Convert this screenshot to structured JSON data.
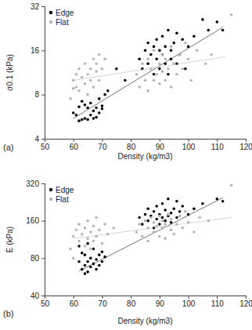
{
  "chart_data": [
    {
      "type": "scatter",
      "title": "(a)",
      "xlabel": "Density (kg/m3)",
      "ylabel": "σ0.1 (kPa)",
      "xlim": [
        50,
        120
      ],
      "xticks": [
        50,
        60,
        70,
        80,
        90,
        100,
        110,
        120
      ],
      "ylim": [
        4,
        32
      ],
      "yticks": [
        4,
        8,
        16,
        32
      ],
      "log": "y",
      "legend": "top-left",
      "series": [
        {
          "name": "Edge",
          "color": "#000000",
          "marker": "circle",
          "x": [
            60,
            61,
            62,
            62,
            63,
            63,
            64,
            64,
            65,
            65,
            66,
            66,
            67,
            67,
            68,
            68,
            69,
            69,
            70,
            70,
            71,
            72,
            75,
            78,
            83,
            84,
            85,
            86,
            86,
            87,
            88,
            88,
            89,
            89,
            90,
            90,
            91,
            91,
            92,
            92,
            93,
            93,
            94,
            94,
            95,
            96,
            96,
            97,
            98,
            99,
            100,
            102,
            105,
            107,
            110,
            112
          ],
          "values": [
            6,
            5.8,
            5.3,
            6.6,
            5.4,
            7.2,
            5.5,
            6.8,
            6.5,
            5.4,
            5.8,
            7,
            6.2,
            5.5,
            6.5,
            5.6,
            7.5,
            6,
            6.4,
            6.7,
            8,
            8.5,
            12,
            10,
            14,
            12,
            16,
            18,
            13,
            15,
            11,
            17,
            19,
            14,
            16,
            12,
            20,
            15,
            13,
            17,
            22,
            11,
            16,
            14,
            18,
            13,
            21,
            15,
            19,
            12,
            17,
            20,
            26,
            22,
            25,
            22
          ],
          "trend": {
            "x": [
              60,
              112
            ],
            "values": [
              5.5,
              23
            ]
          }
        },
        {
          "name": "Flat",
          "color": "#b5b5b5",
          "marker": "circle",
          "x": [
            59,
            60,
            61,
            61,
            62,
            62,
            63,
            64,
            64,
            65,
            65,
            66,
            66,
            67,
            67,
            68,
            68,
            69,
            69,
            70,
            71,
            60,
            82,
            83,
            84,
            85,
            86,
            86,
            87,
            88,
            88,
            89,
            90,
            90,
            91,
            91,
            92,
            92,
            93,
            94,
            94,
            95,
            96,
            97,
            98,
            99,
            100,
            101,
            103,
            106,
            108,
            115
          ],
          "values": [
            7.5,
            10,
            9,
            11,
            12,
            8.5,
            10.5,
            9.5,
            13,
            11,
            8,
            12,
            10,
            14,
            9,
            11.5,
            13,
            10,
            15,
            12,
            14,
            8.8,
            11,
            9,
            13,
            10,
            14,
            8.5,
            12,
            10,
            16,
            11,
            13,
            9.5,
            15,
            11.5,
            10,
            14,
            12,
            17,
            9,
            13,
            11,
            15,
            12,
            18,
            14,
            10,
            16,
            13,
            15,
            28
          ],
          "trend": {
            "x": [
              60,
              113
            ],
            "values": [
              10,
              14.5
            ]
          }
        }
      ]
    },
    {
      "type": "scatter",
      "title": "(b)",
      "xlabel": "Density (kg/m3)",
      "ylabel": "E (kPa)",
      "xlim": [
        50,
        120
      ],
      "xticks": [
        50,
        60,
        70,
        80,
        90,
        100,
        110,
        120
      ],
      "ylim": [
        40,
        320
      ],
      "yticks": [
        40,
        80,
        160,
        320
      ],
      "log": "y",
      "legend": "top-left",
      "series": [
        {
          "name": "Edge",
          "color": "#000000",
          "marker": "circle",
          "x": [
            62,
            62,
            63,
            63,
            64,
            64,
            65,
            65,
            65,
            66,
            66,
            67,
            67,
            68,
            68,
            69,
            69,
            70,
            70,
            71,
            64,
            83,
            84,
            85,
            86,
            86,
            87,
            88,
            88,
            89,
            89,
            90,
            90,
            91,
            91,
            92,
            92,
            93,
            93,
            94,
            94,
            95,
            96,
            96,
            97,
            98,
            100,
            102,
            105,
            110,
            112
          ],
          "values": [
            75,
            100,
            65,
            88,
            70,
            85,
            62,
            75,
            105,
            68,
            80,
            72,
            95,
            65,
            78,
            70,
            85,
            90,
            75,
            82,
            60,
            170,
            150,
            180,
            200,
            160,
            175,
            190,
            140,
            210,
            165,
            180,
            150,
            220,
            170,
            160,
            195,
            240,
            175,
            185,
            155,
            200,
            170,
            230,
            190,
            210,
            180,
            200,
            220,
            240,
            230
          ],
          "trend": {
            "x": [
              62,
              112
            ],
            "values": [
              63,
              245
            ]
          }
        },
        {
          "name": "Flat",
          "color": "#b5b5b5",
          "marker": "circle",
          "x": [
            59,
            60,
            60,
            61,
            62,
            62,
            63,
            64,
            64,
            65,
            65,
            66,
            66,
            67,
            67,
            68,
            68,
            69,
            70,
            71,
            72,
            74,
            82,
            83,
            84,
            85,
            86,
            86,
            87,
            88,
            88,
            89,
            90,
            90,
            91,
            91,
            92,
            92,
            93,
            94,
            94,
            95,
            96,
            97,
            98,
            99,
            100,
            102,
            104,
            107,
            115
          ],
          "values": [
            95,
            120,
            80,
            135,
            110,
            150,
            125,
            100,
            140,
            115,
            160,
            130,
            95,
            145,
            110,
            120,
            170,
            135,
            105,
            150,
            125,
            140,
            130,
            150,
            120,
            160,
            140,
            110,
            170,
            130,
            155,
            145,
            120,
            175,
            140,
            160,
            115,
            150,
            180,
            135,
            165,
            125,
            150,
            175,
            140,
            190,
            155,
            130,
            170,
            160,
            310
          ],
          "trend": {
            "x": [
              60,
              115
            ],
            "values": [
              115,
              170
            ]
          }
        }
      ]
    }
  ]
}
